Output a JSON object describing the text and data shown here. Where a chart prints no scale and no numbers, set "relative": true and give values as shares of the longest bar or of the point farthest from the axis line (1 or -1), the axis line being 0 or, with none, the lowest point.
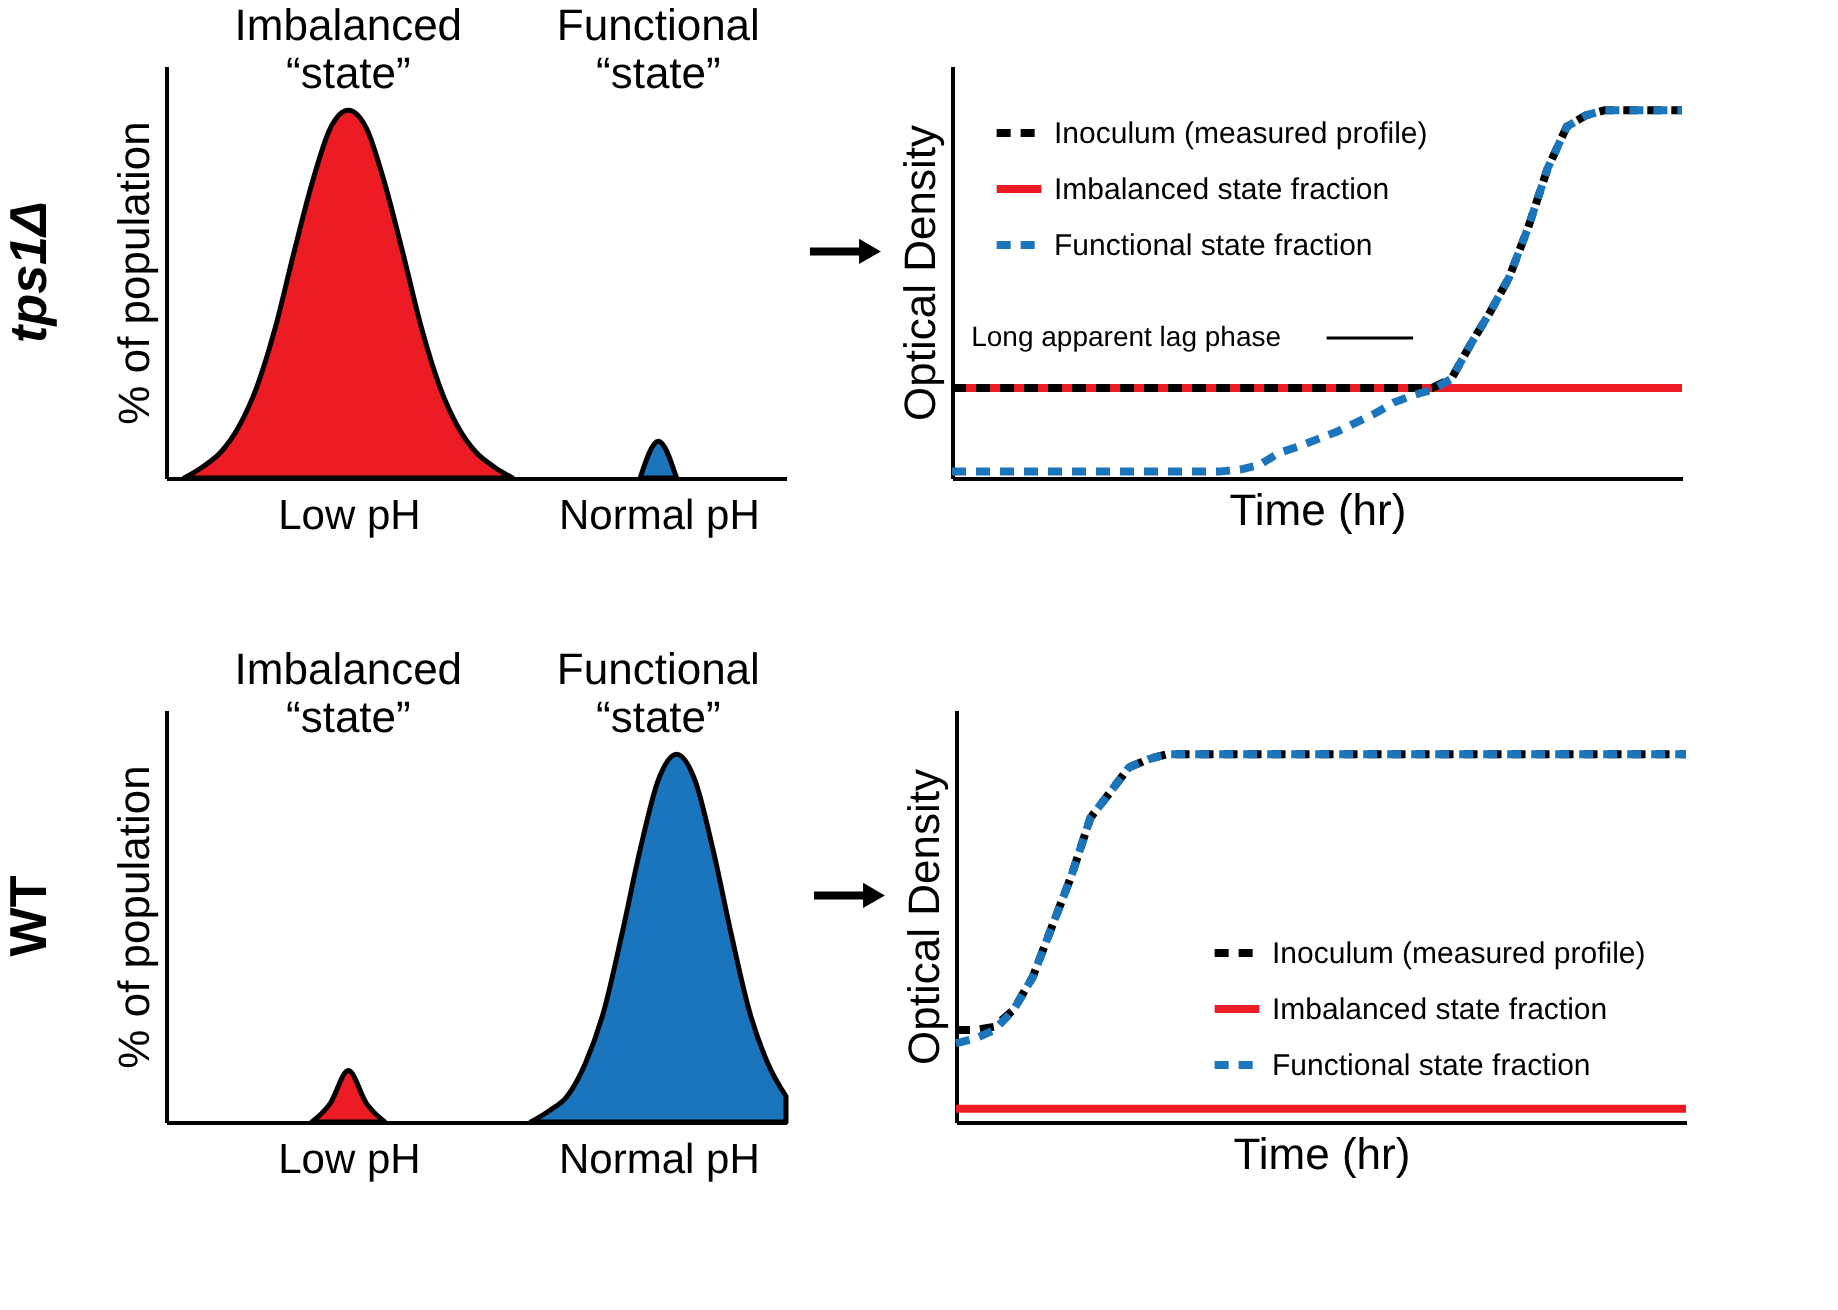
{
  "chart_data": [
    {
      "type": "area",
      "title": "tps1Δ",
      "ylabel": "% of population",
      "relative": true,
      "grid": false,
      "categories": [
        null,
        null,
        null,
        null,
        null,
        null,
        null,
        null,
        null,
        null,
        "Low pH",
        null,
        null,
        null,
        null,
        null,
        null,
        null,
        null,
        null,
        null,
        null,
        null,
        null,
        null,
        null,
        null,
        "Normal pH",
        null,
        null,
        null,
        null,
        null,
        null,
        null
      ],
      "annotations": [
        "Imbalanced “state”",
        "Functional “state”"
      ],
      "series": [
        {
          "color": "#ed1c24",
          "values": [
            null,
            0,
            0.03,
            0.07,
            0.14,
            0.25,
            0.41,
            0.61,
            0.8,
            0.95,
            1,
            0.95,
            0.8,
            0.61,
            0.41,
            0.25,
            0.14,
            0.07,
            0.03,
            0,
            null,
            null,
            null,
            null,
            null,
            null,
            null,
            null,
            null,
            null,
            null,
            null,
            null,
            null,
            null
          ]
        },
        {
          "color": "#1b75bc",
          "values": [
            null,
            null,
            null,
            null,
            null,
            null,
            null,
            null,
            null,
            null,
            null,
            null,
            null,
            null,
            null,
            null,
            null,
            null,
            null,
            null,
            null,
            null,
            null,
            null,
            null,
            null,
            0,
            0.1,
            0,
            null,
            null,
            null,
            null,
            null,
            null
          ]
        }
      ]
    },
    {
      "type": "line",
      "xlabel": "Time (hr)",
      "ylabel": "Optical Density",
      "relative": true,
      "grid": false,
      "legend": "top left",
      "categories": [
        null,
        null,
        null,
        null,
        null,
        null,
        null,
        null,
        null,
        null,
        null,
        null,
        null,
        null,
        null,
        null,
        null,
        null,
        null,
        null,
        null,
        null,
        null,
        null,
        null,
        null,
        null,
        null,
        null,
        null,
        null,
        null,
        null,
        null,
        null,
        null,
        null,
        null,
        null
      ],
      "annotations": [
        "Long apparent lag phase"
      ],
      "series": [
        {
          "name": "Inoculum (measured profile)",
          "color": "#000000",
          "line_style": "dashed",
          "values": [
            0.245,
            0.245,
            0.245,
            0.245,
            0.245,
            0.245,
            0.245,
            0.245,
            0.245,
            0.245,
            0.245,
            0.245,
            0.245,
            0.245,
            0.245,
            0.245,
            0.245,
            0.245,
            0.245,
            0.245,
            0.245,
            0.245,
            0.245,
            0.245,
            0.245,
            0.245,
            0.27,
            0.364,
            0.45,
            0.545,
            0.682,
            0.841,
            0.955,
            0.986,
            1,
            1,
            1,
            1,
            1
          ]
        },
        {
          "name": "Imbalanced state fraction",
          "color": "#ed1c24",
          "line_style": "solid",
          "values": [
            0.245,
            0.245,
            0.245,
            0.245,
            0.245,
            0.245,
            0.245,
            0.245,
            0.245,
            0.245,
            0.245,
            0.245,
            0.245,
            0.245,
            0.245,
            0.245,
            0.245,
            0.245,
            0.245,
            0.245,
            0.245,
            0.245,
            0.245,
            0.245,
            0.245,
            0.245,
            0.245,
            0.245,
            0.245,
            0.245,
            0.245,
            0.245,
            0.245,
            0.245,
            0.245,
            0.245,
            0.245,
            0.245,
            0.245
          ]
        },
        {
          "name": "Functional state fraction",
          "color": "#1b75bc",
          "line_style": "dashed",
          "values": [
            0.018,
            0.018,
            0.018,
            0.018,
            0.018,
            0.018,
            0.018,
            0.018,
            0.018,
            0.018,
            0.018,
            0.018,
            0.018,
            0.018,
            0.018,
            0.023,
            0.035,
            0.068,
            0.085,
            0.105,
            0.125,
            0.15,
            0.175,
            0.205,
            0.225,
            0.24,
            0.27,
            0.364,
            0.45,
            0.545,
            0.682,
            0.841,
            0.955,
            0.986,
            1,
            1,
            1,
            1,
            1
          ]
        }
      ]
    },
    {
      "type": "area",
      "title": "WT",
      "ylabel": "% of population",
      "relative": true,
      "grid": false,
      "categories": [
        null,
        null,
        null,
        null,
        null,
        null,
        null,
        null,
        null,
        null,
        "Low pH",
        null,
        null,
        null,
        null,
        null,
        null,
        null,
        null,
        null,
        null,
        null,
        null,
        null,
        null,
        null,
        null,
        "Normal pH",
        null,
        null,
        null,
        null,
        null,
        null,
        null
      ],
      "annotations": [
        "Imbalanced “state”",
        "Functional “state”"
      ],
      "series": [
        {
          "color": "#ed1c24",
          "values": [
            null,
            null,
            null,
            null,
            null,
            null,
            null,
            null,
            0,
            0.05,
            0.14,
            0.05,
            0,
            null,
            null,
            null,
            null,
            null,
            null,
            null,
            null,
            null,
            null,
            null,
            null,
            null,
            null,
            null,
            null,
            null,
            null,
            null,
            null,
            null,
            null
          ]
        },
        {
          "color": "#1b75bc",
          "values": [
            null,
            null,
            null,
            null,
            null,
            null,
            null,
            null,
            null,
            null,
            null,
            null,
            null,
            null,
            null,
            null,
            null,
            null,
            null,
            null,
            0,
            0.03,
            0.07,
            0.16,
            0.3,
            0.51,
            0.74,
            0.93,
            1,
            0.93,
            0.74,
            0.51,
            0.3,
            0.16,
            0.07
          ]
        }
      ]
    },
    {
      "type": "line",
      "xlabel": "Time (hr)",
      "ylabel": "Optical Density",
      "relative": true,
      "grid": false,
      "legend": "bottom right",
      "categories": [
        null,
        null,
        null,
        null,
        null,
        null,
        null,
        null,
        null,
        null,
        null,
        null,
        null,
        null,
        null,
        null,
        null,
        null,
        null,
        null,
        null,
        null,
        null,
        null,
        null,
        null,
        null,
        null,
        null,
        null,
        null,
        null,
        null,
        null,
        null,
        null,
        null,
        null,
        null
      ],
      "series": [
        {
          "name": "Inoculum (measured profile)",
          "color": "#000000",
          "line_style": "dashed",
          "values": [
            0.25,
            0.25,
            0.259,
            0.305,
            0.395,
            0.532,
            0.668,
            0.827,
            0.895,
            0.964,
            0.986,
            1,
            1,
            1,
            1,
            1,
            1,
            1,
            1,
            1,
            1,
            1,
            1,
            1,
            1,
            1,
            1,
            1,
            1,
            1,
            1,
            1,
            1,
            1,
            1,
            1,
            1,
            1,
            1
          ]
        },
        {
          "name": "Imbalanced state fraction",
          "color": "#ed1c24",
          "line_style": "solid",
          "values": [
            0.036,
            0.036,
            0.036,
            0.036,
            0.036,
            0.036,
            0.036,
            0.036,
            0.036,
            0.036,
            0.036,
            0.036,
            0.036,
            0.036,
            0.036,
            0.036,
            0.036,
            0.036,
            0.036,
            0.036,
            0.036,
            0.036,
            0.036,
            0.036,
            0.036,
            0.036,
            0.036,
            0.036,
            0.036,
            0.036,
            0.036,
            0.036,
            0.036,
            0.036,
            0.036,
            0.036,
            0.036,
            0.036,
            0.036
          ]
        },
        {
          "name": "Functional state fraction",
          "color": "#1b75bc",
          "line_style": "dashed",
          "values": [
            0.214,
            0.227,
            0.25,
            0.305,
            0.395,
            0.532,
            0.668,
            0.827,
            0.895,
            0.964,
            0.986,
            1,
            1,
            1,
            1,
            1,
            1,
            1,
            1,
            1,
            1,
            1,
            1,
            1,
            1,
            1,
            1,
            1,
            1,
            1,
            1,
            1,
            1,
            1,
            1,
            1,
            1,
            1,
            1
          ]
        }
      ]
    }
  ]
}
